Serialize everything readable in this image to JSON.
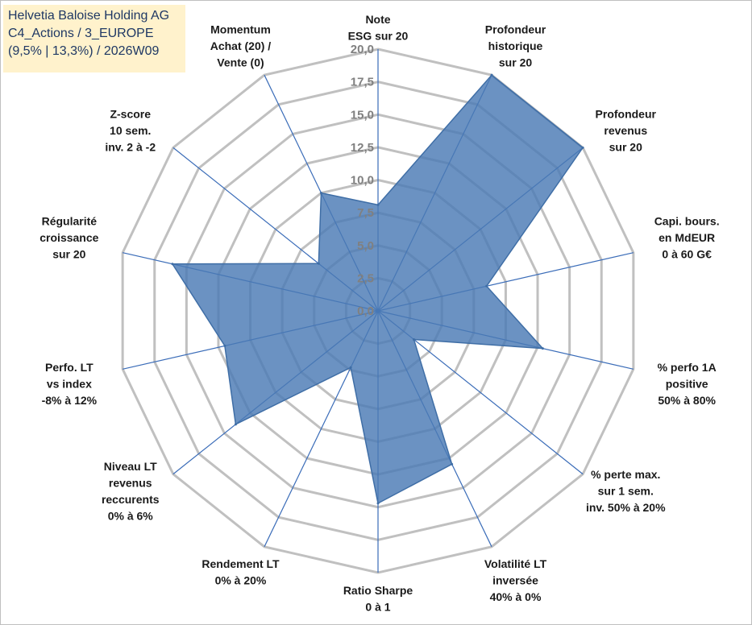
{
  "header": {
    "line1": "Helvetia Baloise Holding AG",
    "line2": "C4_Actions / 3_EUROPE",
    "line3": "(9,5% | 13,3%) / 2026W09"
  },
  "colors": {
    "fill": "#4a7ab5",
    "edge": "#3f6ea6",
    "spoke": "#3a6cb8",
    "grid": "#c0c0c0",
    "tick": "#808080",
    "title_bg": "#fff2cc"
  },
  "chart_data": {
    "type": "radar",
    "rmin": 0,
    "rmax": 20,
    "tick_step": 2.5,
    "tick_labels": [
      "0,0",
      "2,5",
      "5,0",
      "7,5",
      "10,0",
      "12,5",
      "15,0",
      "17,5",
      "20,0"
    ],
    "axes": [
      {
        "label": [
          "Note",
          "ESG sur 20"
        ],
        "value": 8.1
      },
      {
        "label": [
          "Profondeur",
          "historique",
          "sur 20"
        ],
        "value": 20.0
      },
      {
        "label": [
          "Profondeur",
          "revenus",
          "sur 20"
        ],
        "value": 20.0
      },
      {
        "label": [
          "Capi. bours.",
          "en MdEUR",
          "0 à 60 G€"
        ],
        "value": 8.5
      },
      {
        "label": [
          "% perfo 1A",
          "positive",
          "50% à 80%"
        ],
        "value": 12.9
      },
      {
        "label": [
          "% perte max.",
          "sur 1 sem.",
          "inv. 50% à 20%"
        ],
        "value": 3.5
      },
      {
        "label": [
          "Volatilité LT",
          "inversée",
          "40% à 0%"
        ],
        "value": 13.0
      },
      {
        "label": [
          "Ratio Sharpe",
          "0 à 1"
        ],
        "value": 14.7
      },
      {
        "label": [
          "Rendement LT",
          "0% à 20%"
        ],
        "value": 4.8
      },
      {
        "label": [
          "Niveau LT",
          "revenus",
          "reccurents",
          "0% à 6%"
        ],
        "value": 13.9
      },
      {
        "label": [
          "Perfo. LT",
          "vs index",
          "-8% à 12%"
        ],
        "value": 12.0
      },
      {
        "label": [
          "Régularité",
          "croissance",
          "sur 20"
        ],
        "value": 16.1
      },
      {
        "label": [
          "Z-score",
          "10 sem.",
          "inv. 2 à -2"
        ],
        "value": 5.8
      },
      {
        "label": [
          "Momentum",
          "Achat (20) /",
          "Vente (0)"
        ],
        "value": 10.0
      }
    ]
  }
}
